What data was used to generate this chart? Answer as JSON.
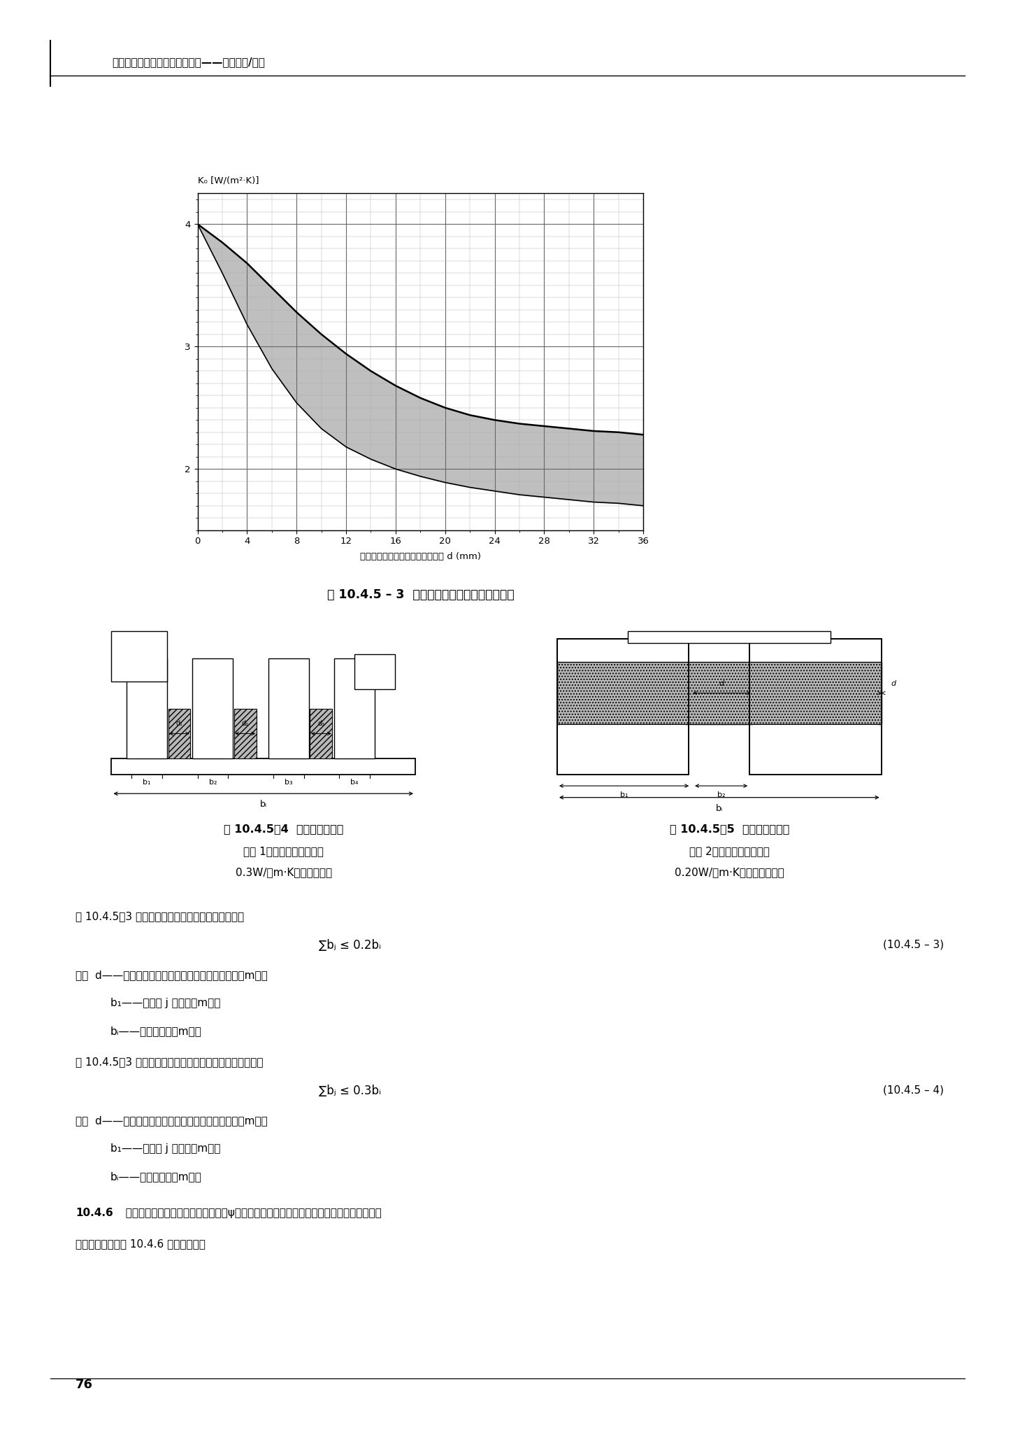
{
  "page_bg": "#ffffff",
  "header_text": "全国民用建筑工程设计技术措施——节能专篇/建筑",
  "fig_caption_453": "图 10.4.5 – 3  带隔热的金属窗框的传热系数値",
  "fig_caption_454": "图 10.4.5－4  隔热金属框截面",
  "fig_caption_454_sub1": "类型 1［采用导热系数低于",
  "fig_caption_454_sub2": "0.3W/（m·K）的隔热条］",
  "fig_caption_455": "图 10.4.5－5  隔热金属框截面",
  "fig_caption_455_sub1": "类型 2［采用导热系数低于",
  "fig_caption_455_sub2": "0.20W/（m·K）的泡沫材料］",
  "ylabel": "K₀ [W/(m²·K)]",
  "xlabel": "相对应的金属窗框之间的最小距离 d (mm)",
  "x_ticks": [
    0,
    4,
    8,
    12,
    16,
    20,
    24,
    28,
    32,
    36
  ],
  "y_ticks": [
    2.0,
    3.0,
    4.0
  ],
  "ylim": [
    1.5,
    4.25
  ],
  "xlim": [
    0,
    36
  ],
  "upper_curve_x": [
    0,
    2,
    4,
    6,
    8,
    10,
    12,
    14,
    16,
    18,
    20,
    22,
    24,
    26,
    28,
    30,
    32,
    34,
    36
  ],
  "upper_curve_y": [
    4.0,
    3.85,
    3.68,
    3.48,
    3.28,
    3.1,
    2.94,
    2.8,
    2.68,
    2.58,
    2.5,
    2.44,
    2.4,
    2.37,
    2.35,
    2.33,
    2.31,
    2.3,
    2.28
  ],
  "lower_curve_x": [
    0,
    2,
    4,
    6,
    8,
    10,
    12,
    14,
    16,
    18,
    20,
    22,
    24,
    26,
    28,
    30,
    32,
    34,
    36
  ],
  "lower_curve_y": [
    4.0,
    3.6,
    3.18,
    2.82,
    2.54,
    2.33,
    2.18,
    2.08,
    2.0,
    1.94,
    1.89,
    1.85,
    1.82,
    1.79,
    1.77,
    1.75,
    1.73,
    1.72,
    1.7
  ],
  "shade_color": "#aaaaaa",
  "curve_color": "#000000",
  "grid_color": "#888888",
  "text_color": "#000000",
  "page_number": "76",
  "body_line1": "图 10.4.5－3 中，带隔热条的金属窗框适用条件是：",
  "formula1": "∑bⱼ ≤ 0.2bᵢ",
  "formula_ref1": "(10.4.5 – 3)",
  "body_d1": "式中  d——热桥桥对应的铝合金截面之间的最小距离（m）；",
  "body_b1": "b₁——热桥桥 j 的宽度（m）；",
  "body_bi1": "bᵢ——窗框的宽度（m）。",
  "body_line2": "图 10.4.5－3 中，采用泡沫材料隔热的金属框适用条件是：",
  "formula2": "∑bⱼ ≤ 0.3bᵢ",
  "formula_ref2": "(10.4.5 – 4)",
  "body_d2": "式中  d——热桥桥对应的铝合金截面之间的最小距离（m）；",
  "body_b2": "b₁——热桥桥 j 的宽度（m）；",
  "body_bi2": "bᵢ——窗框的宽度（m）。",
  "section_bold": "10.4.6",
  "section_rest": "  窗框与玻璃结合处的附加线传热系数ψ主要受间隔层材料传导率的影响。在没有精确计算的",
  "section_line2": "情况下，可采用表 10.4.6 中的估算値。"
}
